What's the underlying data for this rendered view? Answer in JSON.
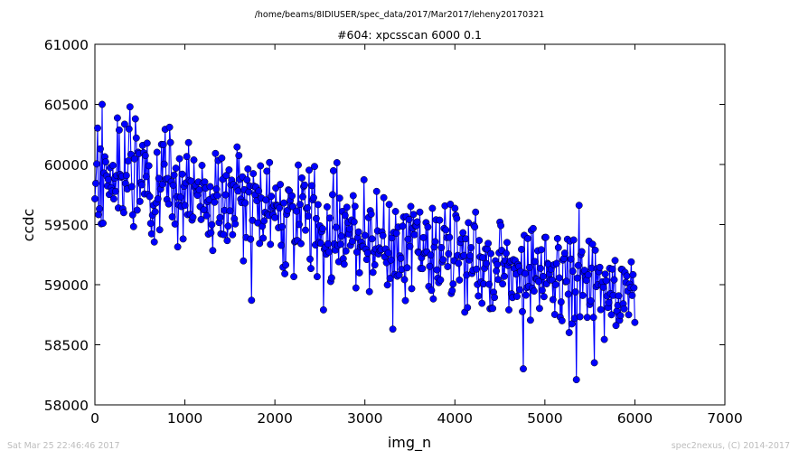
{
  "chart_data": {
    "type": "line",
    "suptitle": "/home/beams/8IDIUSER/spec_data/2017/Mar2017/leheny20170321",
    "title": "#604: xpcsscan 6000 0.1",
    "xlabel": "img_n",
    "ylabel": "ccdc",
    "xlim": [
      0,
      7000
    ],
    "ylim": [
      58000,
      61000
    ],
    "xticks": [
      "0",
      "1000",
      "2000",
      "3000",
      "4000",
      "5000",
      "6000",
      "7000"
    ],
    "yticks": [
      "58000",
      "58500",
      "59000",
      "59500",
      "60000",
      "60500",
      "61000"
    ],
    "grid": false,
    "line_color": "#0000ff",
    "marker_color": "#0000ff",
    "marker": "circle",
    "trend": {
      "start": [
        0,
        59950
      ],
      "end": [
        6000,
        58900
      ]
    },
    "x_start": 0,
    "x_end": 6000,
    "x_step": 10,
    "point_count": 601,
    "notable_points": [
      {
        "x": 80,
        "y": 60500
      },
      {
        "x": 390,
        "y": 60480
      },
      {
        "x": 450,
        "y": 60380
      },
      {
        "x": 830,
        "y": 60310
      },
      {
        "x": 1740,
        "y": 58870
      },
      {
        "x": 2540,
        "y": 58790
      },
      {
        "x": 3310,
        "y": 58630
      },
      {
        "x": 4760,
        "y": 58300
      },
      {
        "x": 5350,
        "y": 58210
      },
      {
        "x": 5380,
        "y": 59660
      },
      {
        "x": 5550,
        "y": 58350
      }
    ]
  },
  "footer": {
    "left": "Sat Mar 25 22:46:46 2017",
    "right": "spec2nexus, (C) 2014-2017"
  }
}
